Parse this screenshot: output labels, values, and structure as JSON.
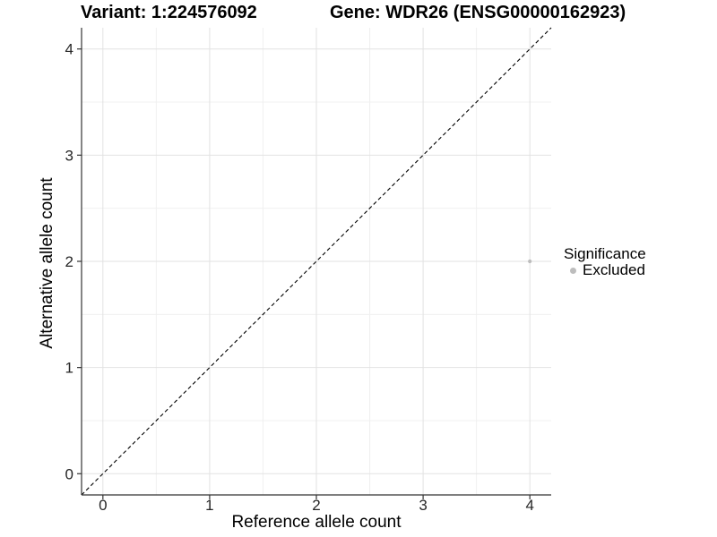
{
  "header": {
    "variant_title": "Variant: 1:224576092",
    "gene_title": "Gene: WDR26 (ENSG00000162923)"
  },
  "chart_data": {
    "type": "scatter",
    "title": "Variant: 1:224576092   Gene: WDR26 (ENSG00000162923)",
    "xlabel": "Reference allele count",
    "ylabel": "Alternative allele count",
    "xlim": [
      -0.2,
      4.2
    ],
    "ylim": [
      -0.2,
      4.2
    ],
    "x_ticks": [
      0,
      1,
      2,
      3,
      4
    ],
    "y_ticks": [
      0,
      1,
      2,
      3,
      4
    ],
    "x_minor_ticks": [
      0.5,
      1.5,
      2.5,
      3.5
    ],
    "y_minor_ticks": [
      0.5,
      1.5,
      2.5,
      3.5
    ],
    "grid": "major and minor, light grey on white",
    "points": [
      {
        "x": 4,
        "y": 2,
        "series": "Excluded"
      }
    ],
    "identity_line": {
      "style": "dashed",
      "from": [
        -0.2,
        -0.2
      ],
      "to": [
        4.2,
        4.2
      ]
    },
    "legend": {
      "title": "Significance",
      "position": "right",
      "items": [
        {
          "label": "Excluded",
          "color": "#bdbdbd"
        }
      ]
    }
  },
  "colors": {
    "background": "#ffffff",
    "grid_major": "#e2e2e2",
    "grid_minor": "#f0f0f0",
    "axis_line": "#333333",
    "tick_mark": "#333333",
    "tick_label": "#262626",
    "dashed_line": "#000000",
    "text": "#000000",
    "point": "#bdbdbd"
  }
}
